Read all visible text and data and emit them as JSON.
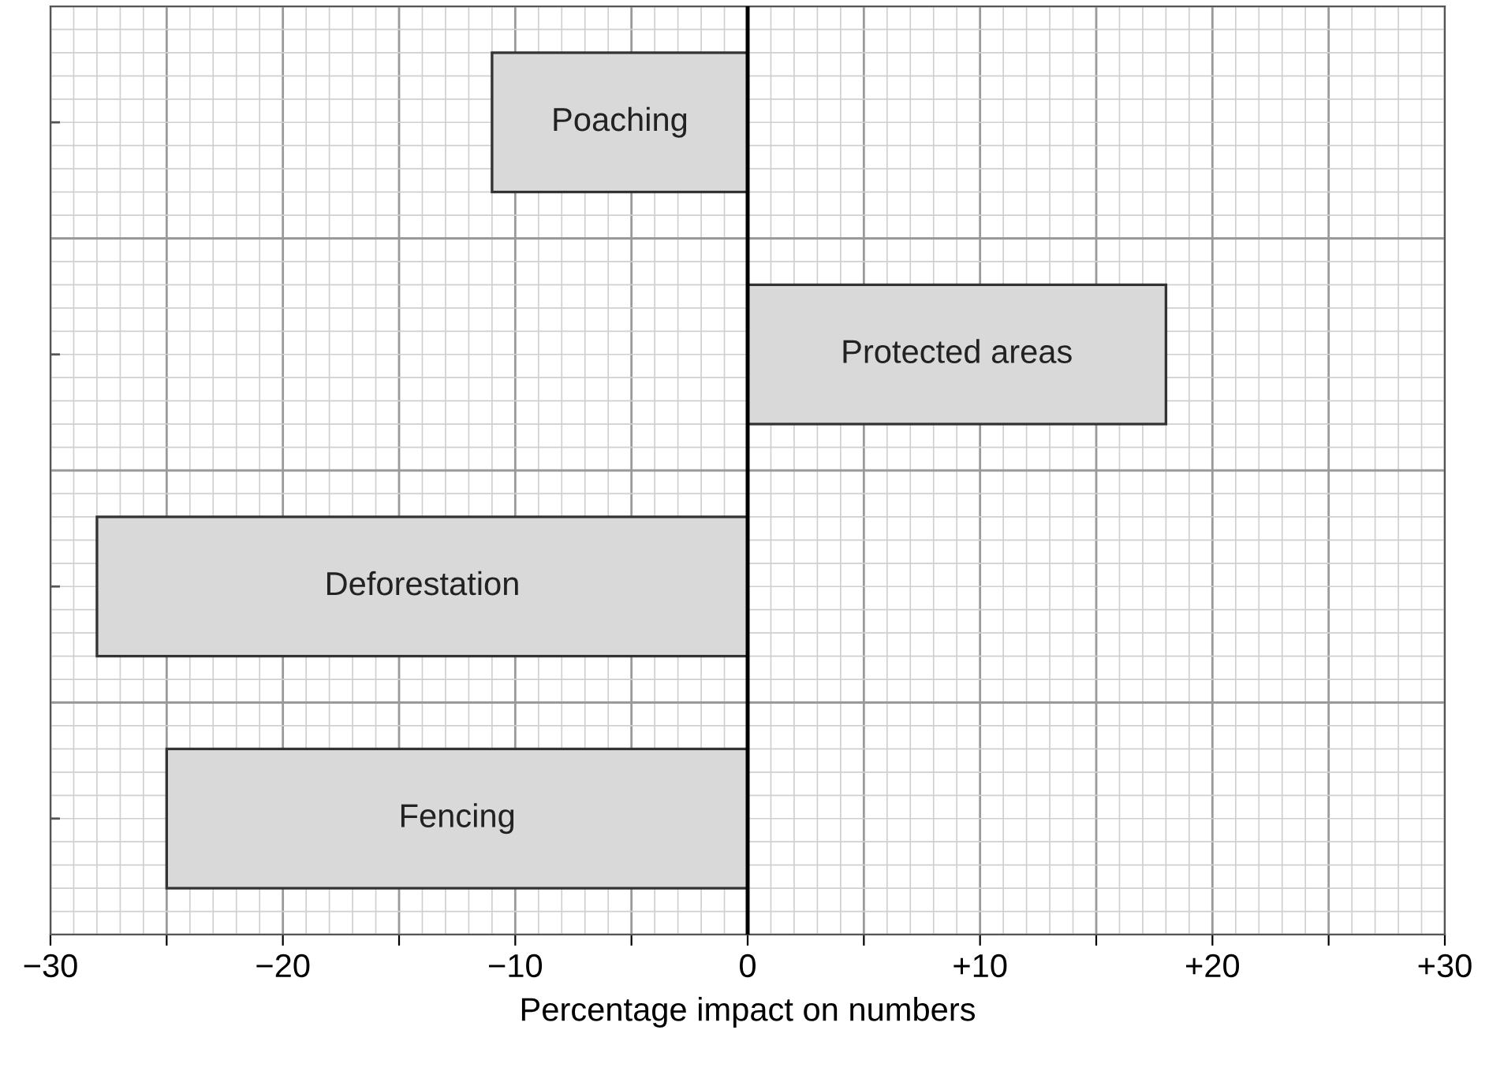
{
  "chart_data": {
    "type": "bar",
    "orientation": "horizontal",
    "xlabel": "Percentage impact on numbers",
    "categories": [
      "Poaching",
      "Protected areas",
      "Deforestation",
      "Fencing"
    ],
    "values": [
      -11,
      18,
      -28,
      -25
    ],
    "color": "#d9d9d9",
    "xlim": [
      -30,
      30
    ],
    "xticks": [
      {
        "value": -30,
        "label": "−30"
      },
      {
        "value": -25,
        "label": null
      },
      {
        "value": -20,
        "label": "−20"
      },
      {
        "value": -15,
        "label": null
      },
      {
        "value": -10,
        "label": "−10"
      },
      {
        "value": -5,
        "label": null
      },
      0,
      {
        "value": 5,
        "label": null
      },
      {
        "value": 10,
        "label": "+10"
      },
      {
        "value": 15,
        "label": null
      },
      {
        "value": 20,
        "label": "+20"
      },
      {
        "value": 25,
        "label": null
      },
      {
        "value": 30,
        "label": "+30"
      }
    ],
    "ref_lines": [
      {
        "axis": "x",
        "value": 0,
        "color": "#000000"
      }
    ],
    "grid": true,
    "tick_labels": "x"
  }
}
